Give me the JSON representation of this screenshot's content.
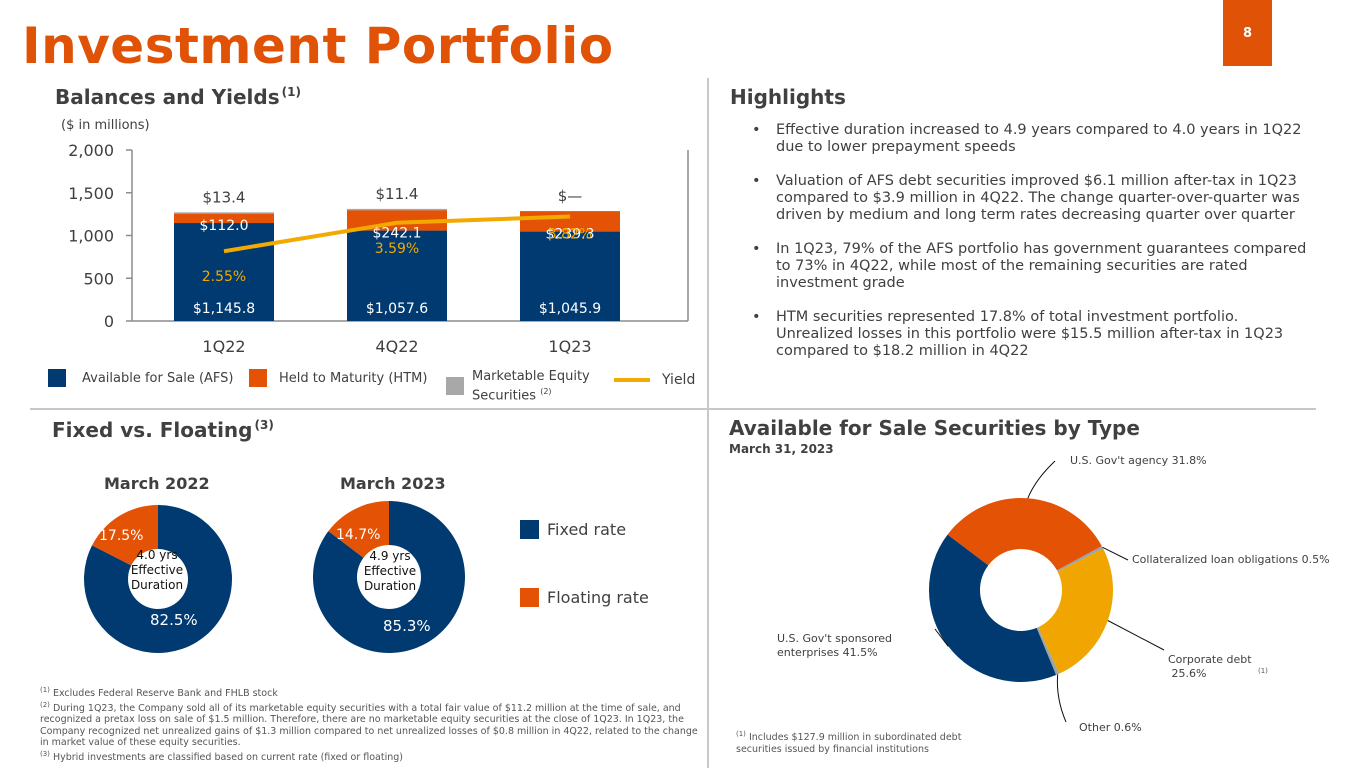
{
  "page": {
    "title": "Investment Portfolio",
    "page_number": "8"
  },
  "balances": {
    "heading": "Balances and Yields",
    "heading_note": "(1)",
    "units": "($ in millions)",
    "legend": {
      "afs": "Available for Sale (AFS)",
      "htm": "Held to Maturity (HTM)",
      "equity_line1": "Marketable Equity",
      "equity_line2": "Securities",
      "equity_note": "(2)",
      "yield": "Yield"
    }
  },
  "highlights": {
    "heading": "Highlights",
    "bullet": "•",
    "items": [
      "Effective duration increased to 4.9 years compared to 4.0 years in 1Q22 due to lower prepayment speeds",
      "Valuation of AFS debt securities improved $6.1 million after-tax in 1Q23 compared to $3.9 million in 4Q22.  The change quarter-over-quarter was driven by medium and long term rates decreasing quarter over quarter",
      "In 1Q23, 79% of the AFS portfolio has government guarantees compared to 73% in 4Q22, while most of the remaining securities are rated investment grade",
      "HTM securities represented 17.8% of total investment portfolio. Unrealized losses in this portfolio were $15.5 million after-tax in 1Q23 compared to $18.2 million in 4Q22"
    ]
  },
  "fixed_floating": {
    "heading": "Fixed vs. Floating",
    "heading_note": "(3)",
    "legend": {
      "fixed": "Fixed rate",
      "floating": "Floating rate"
    },
    "charts": [
      {
        "title": "March 2022",
        "center_line1": "4.0 yrs",
        "center_line2": "Effective",
        "center_line3": "Duration",
        "fixed_label": "82.5%",
        "floating_label": "17.5%"
      },
      {
        "title": "March 2023",
        "center_line1": "4.9 yrs",
        "center_line2": "Effective",
        "center_line3": "Duration",
        "fixed_label": "85.3%",
        "floating_label": "14.7%"
      }
    ]
  },
  "afs_by_type": {
    "heading": "Available for Sale Securities by Type",
    "date": "March 31, 2023",
    "labels": {
      "agency": "U.S. Gov't agency  31.8%",
      "clo": "Collateralized loan obligations 0.5%",
      "corporate_line1": "Corporate debt",
      "corporate_line2": " 25.6%",
      "corporate_note": "(1)",
      "other": "Other 0.6%",
      "gse_line1": "U.S. Gov't sponsored",
      "gse_line2": "enterprises  41.5%"
    },
    "footnote_mark": "(1)",
    "footnote": "Includes $127.9 million in subordinated debt securities issued by financial institutions"
  },
  "footnotes": [
    {
      "mark": "(1)",
      "text": "Excludes Federal Reserve Bank and FHLB stock"
    },
    {
      "mark": "(2)",
      "text": "During 1Q23, the Company sold all of its marketable equity securities with a total fair value of $11.2 million at the time of sale, and recognized a pretax loss on sale of $1.5 million. Therefore, there are no marketable equity securities at the close of 1Q23. In 1Q23, the Company recognized net unrealized gains of $1.3 million compared to net unrealized losses of $0.8 million in 4Q22, related to the change in market value of these equity securities."
    },
    {
      "mark": "(3)",
      "text": "Hybrid investments are classified based on current rate (fixed or floating)"
    }
  ],
  "colors": {
    "brand_orange": "#e05206",
    "navy": "#003a70",
    "htm_orange": "#e35205",
    "equity_gray": "#a8a8a8",
    "yield_gold": "#f2a900",
    "corporate_gold": "#f0a500",
    "other_gray": "#9aa5a8"
  },
  "chart_data": [
    {
      "type": "bar",
      "title": "Balances and Yields",
      "stacked": true,
      "categories": [
        "1Q22",
        "4Q22",
        "1Q23"
      ],
      "ylabel": "($ in millions)",
      "ylim": [
        0,
        2000
      ],
      "yticks": [
        0,
        500,
        1000,
        1500,
        2000
      ],
      "ytick_labels": [
        "0",
        "500",
        "1,000",
        "1,500",
        "2,000"
      ],
      "grid": false,
      "legend_position": "bottom",
      "series": [
        {
          "name": "Available for Sale (AFS)",
          "values": [
            1145.8,
            1057.6,
            1045.9
          ],
          "labels": [
            "$1,145.8",
            "$1,057.6",
            "$1,045.9"
          ]
        },
        {
          "name": "Held to Maturity (HTM)",
          "values": [
            112.0,
            242.1,
            239.3
          ],
          "labels": [
            "$112.0",
            "$242.1",
            "$239.3"
          ]
        },
        {
          "name": "Marketable Equity Securities",
          "values": [
            13.4,
            11.4,
            0
          ],
          "labels": [
            "$13.4",
            "$11.4",
            "$—"
          ]
        }
      ],
      "line_series": {
        "name": "Yield",
        "values": [
          2.55,
          3.59,
          3.82
        ],
        "labels": [
          "2.55%",
          "3.59%",
          "3.82%"
        ],
        "secondary_axis_range": [
          0,
          6
        ]
      }
    },
    {
      "type": "pie",
      "title": "March 2022",
      "donut": true,
      "labels": [
        "Fixed rate",
        "Floating rate"
      ],
      "values": [
        82.5,
        17.5
      ]
    },
    {
      "type": "pie",
      "title": "March 2023",
      "donut": true,
      "labels": [
        "Fixed rate",
        "Floating rate"
      ],
      "values": [
        85.3,
        14.7
      ]
    },
    {
      "type": "pie",
      "title": "Available for Sale Securities by Type",
      "subtitle": "March 31, 2023",
      "donut": true,
      "labels": [
        "U.S. Gov't agency",
        "Collateralized loan obligations",
        "Corporate debt",
        "Other",
        "U.S. Gov't sponsored enterprises"
      ],
      "values": [
        31.8,
        0.5,
        25.6,
        0.6,
        41.5
      ]
    }
  ]
}
